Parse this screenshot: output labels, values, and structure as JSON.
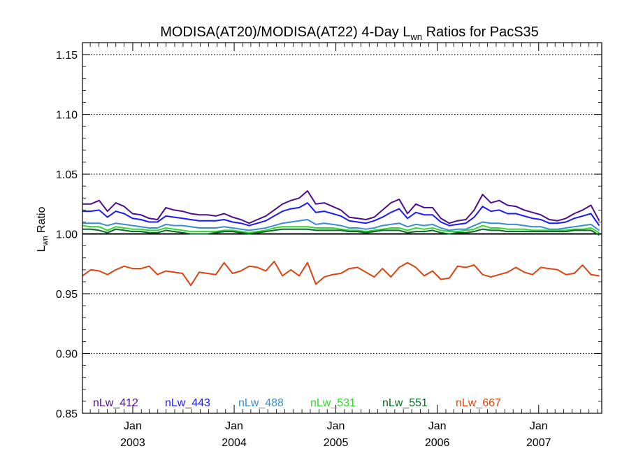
{
  "chart_data": {
    "type": "line",
    "title": "MODISA(AT20)/MODISA(AT22) 4-Day L",
    "title_sub": "wn",
    "title_suffix": " Ratios for PacS35",
    "ylabel": "L",
    "ylabel_sub": "wn",
    "ylabel_suffix": " Ratio",
    "xlim": [
      "2002-07-04",
      "2007-08-16"
    ],
    "ylim": [
      0.85,
      1.16
    ],
    "reference_line": 1.0,
    "y_ticks": [
      0.85,
      0.9,
      0.95,
      1.0,
      1.05,
      1.1,
      1.15
    ],
    "y_tick_labels": [
      "0.85",
      "0.90",
      "0.95",
      "1.00",
      "1.05",
      "1.10",
      "1.15"
    ],
    "x_ticks": [
      {
        "date": "2003-01-01",
        "month": "Jan",
        "year": "2003"
      },
      {
        "date": "2004-01-01",
        "month": "Jan",
        "year": "2004"
      },
      {
        "date": "2005-01-01",
        "month": "Jan",
        "year": "2005"
      },
      {
        "date": "2006-01-01",
        "month": "Jan",
        "year": "2006"
      },
      {
        "date": "2007-01-01",
        "month": "Jan",
        "year": "2007"
      }
    ],
    "grid": "horizontal dotted",
    "legend_position": "bottom",
    "x": [
      "2002-07-04",
      "2002-08-03",
      "2002-09-02",
      "2002-10-02",
      "2002-11-01",
      "2002-12-01",
      "2002-12-31",
      "2003-01-30",
      "2003-03-01",
      "2003-03-31",
      "2003-04-30",
      "2003-05-30",
      "2003-06-29",
      "2003-07-29",
      "2003-08-28",
      "2003-09-27",
      "2003-10-27",
      "2003-11-26",
      "2003-12-26",
      "2004-01-25",
      "2004-02-24",
      "2004-03-25",
      "2004-04-24",
      "2004-05-24",
      "2004-06-23",
      "2004-07-23",
      "2004-08-22",
      "2004-09-21",
      "2004-10-21",
      "2004-11-20",
      "2004-12-20",
      "2005-01-19",
      "2005-02-18",
      "2005-03-20",
      "2005-04-19",
      "2005-05-19",
      "2005-06-18",
      "2005-07-18",
      "2005-08-17",
      "2005-09-16",
      "2005-10-16",
      "2005-11-15",
      "2005-12-15",
      "2006-01-14",
      "2006-02-13",
      "2006-03-15",
      "2006-04-14",
      "2006-05-14",
      "2006-06-13",
      "2006-07-13",
      "2006-08-12",
      "2006-09-11",
      "2006-10-11",
      "2006-11-10",
      "2006-12-10",
      "2007-01-09",
      "2007-02-08",
      "2007-03-10",
      "2007-04-09",
      "2007-05-09",
      "2007-06-08",
      "2007-07-08",
      "2007-08-07"
    ],
    "series": [
      {
        "name": "nLw_412",
        "color": "#4b0f8c",
        "values": [
          1.025,
          1.025,
          1.028,
          1.019,
          1.026,
          1.023,
          1.017,
          1.016,
          1.013,
          1.012,
          1.022,
          1.02,
          1.019,
          1.017,
          1.016,
          1.016,
          1.015,
          1.017,
          1.014,
          1.012,
          1.009,
          1.012,
          1.015,
          1.02,
          1.025,
          1.028,
          1.03,
          1.036,
          1.025,
          1.026,
          1.023,
          1.02,
          1.014,
          1.013,
          1.012,
          1.014,
          1.02,
          1.026,
          1.029,
          1.017,
          1.025,
          1.022,
          1.022,
          1.013,
          1.009,
          1.011,
          1.012,
          1.02,
          1.033,
          1.026,
          1.028,
          1.024,
          1.023,
          1.02,
          1.018,
          1.016,
          1.012,
          1.011,
          1.013,
          1.017,
          1.02,
          1.024,
          1.011
        ]
      },
      {
        "name": "nLw_443",
        "color": "#1a1aff",
        "values": [
          1.019,
          1.019,
          1.02,
          1.014,
          1.019,
          1.017,
          1.013,
          1.012,
          1.01,
          1.01,
          1.015,
          1.014,
          1.013,
          1.012,
          1.011,
          1.011,
          1.011,
          1.012,
          1.01,
          1.009,
          1.007,
          1.009,
          1.011,
          1.015,
          1.019,
          1.021,
          1.022,
          1.026,
          1.018,
          1.019,
          1.017,
          1.015,
          1.011,
          1.01,
          1.009,
          1.011,
          1.014,
          1.018,
          1.021,
          1.013,
          1.018,
          1.016,
          1.016,
          1.01,
          1.007,
          1.008,
          1.009,
          1.014,
          1.023,
          1.019,
          1.02,
          1.017,
          1.017,
          1.015,
          1.013,
          1.012,
          1.009,
          1.009,
          1.01,
          1.013,
          1.015,
          1.017,
          1.007
        ]
      },
      {
        "name": "nLw_488",
        "color": "#3a8cd6",
        "values": [
          1.009,
          1.009,
          1.009,
          1.007,
          1.009,
          1.008,
          1.007,
          1.006,
          1.005,
          1.005,
          1.008,
          1.007,
          1.007,
          1.006,
          1.005,
          1.005,
          1.005,
          1.006,
          1.005,
          1.004,
          1.003,
          1.004,
          1.005,
          1.007,
          1.009,
          1.01,
          1.011,
          1.012,
          1.008,
          1.009,
          1.008,
          1.007,
          1.005,
          1.005,
          1.004,
          1.005,
          1.007,
          1.008,
          1.009,
          1.006,
          1.008,
          1.007,
          1.008,
          1.005,
          1.003,
          1.004,
          1.004,
          1.007,
          1.01,
          1.009,
          1.009,
          1.008,
          1.008,
          1.007,
          1.006,
          1.006,
          1.004,
          1.004,
          1.005,
          1.006,
          1.007,
          1.008,
          1.003
        ]
      },
      {
        "name": "nLw_531",
        "color": "#33d633",
        "values": [
          1.007,
          1.006,
          1.006,
          1.003,
          1.006,
          1.005,
          1.004,
          1.004,
          1.003,
          1.003,
          1.005,
          1.004,
          1.003,
          1.002,
          1.002,
          1.002,
          1.002,
          1.003,
          1.003,
          1.002,
          1.001,
          1.002,
          1.003,
          1.005,
          1.006,
          1.006,
          1.006,
          1.006,
          1.005,
          1.005,
          1.005,
          1.004,
          1.003,
          1.003,
          1.002,
          1.003,
          1.004,
          1.005,
          1.005,
          1.003,
          1.005,
          1.004,
          1.005,
          1.003,
          1.002,
          1.002,
          1.003,
          1.004,
          1.007,
          1.005,
          1.005,
          1.004,
          1.004,
          1.004,
          1.003,
          1.003,
          1.003,
          1.003,
          1.003,
          1.004,
          1.004,
          1.005,
          1.001
        ]
      },
      {
        "name": "nLw_551",
        "color": "#0a6b28",
        "values": [
          1.004,
          1.004,
          1.003,
          1.001,
          1.004,
          1.003,
          1.002,
          1.002,
          1.001,
          1.001,
          1.003,
          1.002,
          1.001,
          1.0,
          1.0,
          1.0,
          1.001,
          1.002,
          1.002,
          1.001,
          1.0,
          1.001,
          1.002,
          1.003,
          1.004,
          1.004,
          1.004,
          1.004,
          1.003,
          1.003,
          1.003,
          1.003,
          1.002,
          1.002,
          1.001,
          1.002,
          1.003,
          1.003,
          1.003,
          1.001,
          1.002,
          1.002,
          1.003,
          1.001,
          1.0,
          1.001,
          1.001,
          1.002,
          1.004,
          1.003,
          1.003,
          1.002,
          1.002,
          1.002,
          1.002,
          1.002,
          1.002,
          1.002,
          1.002,
          1.003,
          1.003,
          1.003,
          0.999
        ]
      },
      {
        "name": "nLw_667",
        "color": "#dd4411",
        "values": [
          0.965,
          0.97,
          0.969,
          0.966,
          0.97,
          0.973,
          0.971,
          0.971,
          0.973,
          0.966,
          0.969,
          0.968,
          0.967,
          0.957,
          0.968,
          0.967,
          0.966,
          0.976,
          0.967,
          0.969,
          0.973,
          0.972,
          0.969,
          0.977,
          0.965,
          0.97,
          0.965,
          0.976,
          0.958,
          0.964,
          0.966,
          0.967,
          0.971,
          0.972,
          0.968,
          0.964,
          0.971,
          0.964,
          0.972,
          0.976,
          0.972,
          0.965,
          0.969,
          0.962,
          0.963,
          0.973,
          0.972,
          0.974,
          0.966,
          0.964,
          0.966,
          0.968,
          0.972,
          0.968,
          0.966,
          0.972,
          0.971,
          0.97,
          0.966,
          0.967,
          0.974,
          0.966,
          0.965
        ]
      }
    ]
  }
}
